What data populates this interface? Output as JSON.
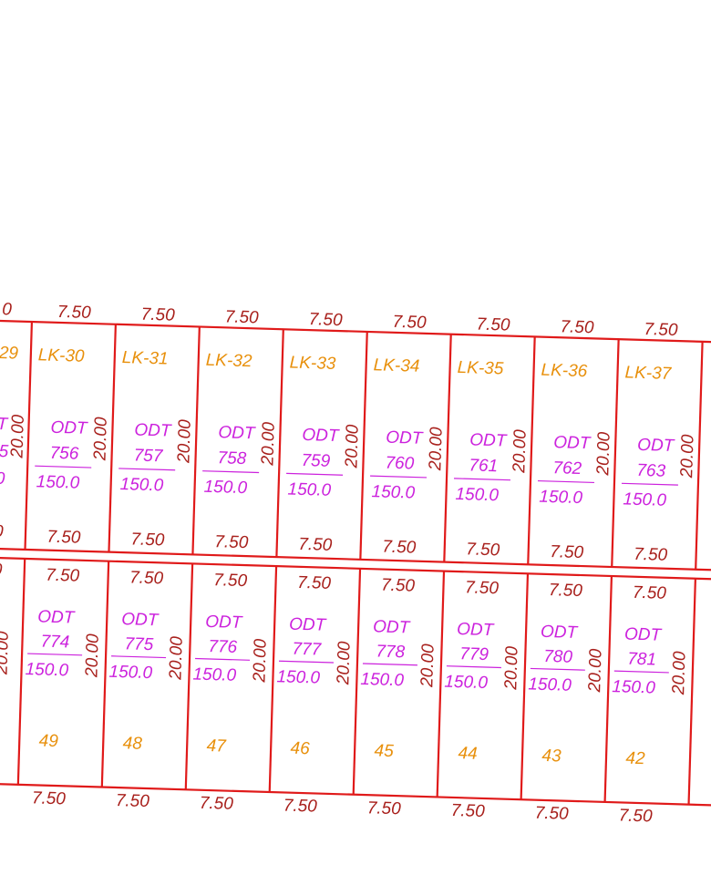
{
  "left_edge": {
    "top_width": "0",
    "lot": "29",
    "odt": "T",
    "odt_no": "5",
    "area": "0",
    "depth": "20.00",
    "bottom_width": "0",
    "row2_top_width": "0",
    "row2_depth": "20.00"
  },
  "top_row": [
    {
      "top_width": "7.50",
      "lot": "LK-30",
      "odt": "ODT",
      "odt_no": "756",
      "area": "150.0",
      "depth": "20.00",
      "bottom_width": "7.50"
    },
    {
      "top_width": "7.50",
      "lot": "LK-31",
      "odt": "ODT",
      "odt_no": "757",
      "area": "150.0",
      "depth": "20.00",
      "bottom_width": "7.50"
    },
    {
      "top_width": "7.50",
      "lot": "LK-32",
      "odt": "ODT",
      "odt_no": "758",
      "area": "150.0",
      "depth": "20.00",
      "bottom_width": "7.50"
    },
    {
      "top_width": "7.50",
      "lot": "LK-33",
      "odt": "ODT",
      "odt_no": "759",
      "area": "150.0",
      "depth": "20.00",
      "bottom_width": "7.50"
    },
    {
      "top_width": "7.50",
      "lot": "LK-34",
      "odt": "ODT",
      "odt_no": "760",
      "area": "150.0",
      "depth": "20.00",
      "bottom_width": "7.50"
    },
    {
      "top_width": "7.50",
      "lot": "LK-35",
      "odt": "ODT",
      "odt_no": "761",
      "area": "150.0",
      "depth": "20.00",
      "bottom_width": "7.50"
    },
    {
      "top_width": "7.50",
      "lot": "LK-36",
      "odt": "ODT",
      "odt_no": "762",
      "area": "150.0",
      "depth": "20.00",
      "bottom_width": "7.50"
    },
    {
      "top_width": "7.50",
      "lot": "LK-37",
      "odt": "ODT",
      "odt_no": "763",
      "area": "150.0",
      "depth": "20.00",
      "bottom_width": "7.50"
    }
  ],
  "bottom_row": [
    {
      "top_width": "7.50",
      "odt": "ODT",
      "odt_no": "774",
      "area": "150.0",
      "depth": "20.00",
      "number": "49",
      "bottom_width": "7.50"
    },
    {
      "top_width": "7.50",
      "odt": "ODT",
      "odt_no": "775",
      "area": "150.0",
      "depth": "20.00",
      "number": "48",
      "bottom_width": "7.50"
    },
    {
      "top_width": "7.50",
      "odt": "ODT",
      "odt_no": "776",
      "area": "150.0",
      "depth": "20.00",
      "number": "47",
      "bottom_width": "7.50"
    },
    {
      "top_width": "7.50",
      "odt": "ODT",
      "odt_no": "777",
      "area": "150.0",
      "depth": "20.00",
      "number": "46",
      "bottom_width": "7.50"
    },
    {
      "top_width": "7.50",
      "odt": "ODT",
      "odt_no": "778",
      "area": "150.0",
      "depth": "20.00",
      "number": "45",
      "bottom_width": "7.50"
    },
    {
      "top_width": "7.50",
      "odt": "ODT",
      "odt_no": "779",
      "area": "150.0",
      "depth": "20.00",
      "number": "44",
      "bottom_width": "7.50"
    },
    {
      "top_width": "7.50",
      "odt": "ODT",
      "odt_no": "780",
      "area": "150.0",
      "depth": "20.00",
      "number": "43",
      "bottom_width": "7.50"
    },
    {
      "top_width": "7.50",
      "odt": "ODT",
      "odt_no": "781",
      "area": "150.0",
      "depth": "20.00",
      "number": "42",
      "bottom_width": "7.50"
    }
  ]
}
